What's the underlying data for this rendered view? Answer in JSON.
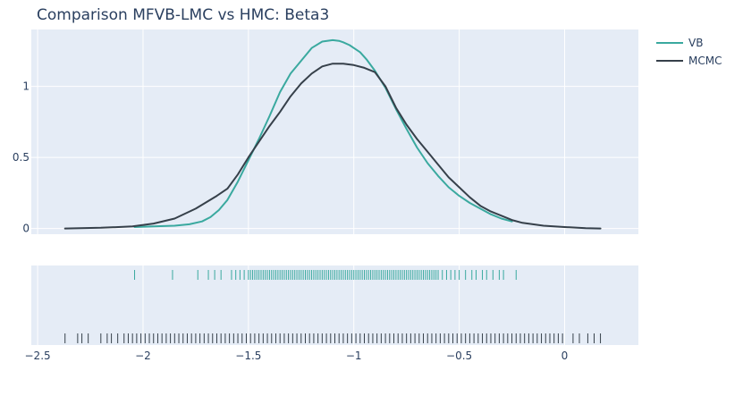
{
  "chart_data": {
    "type": "line",
    "title": "Comparison MFVB-LMC vs HMC: Beta3",
    "xlabel": "",
    "ylabel": "",
    "xlim": [
      -2.53,
      0.35
    ],
    "ylim": [
      -0.04,
      1.4
    ],
    "x_ticks": [
      -2.5,
      -2,
      -1.5,
      -1,
      -0.5,
      0
    ],
    "x_tick_labels": [
      "−2.5",
      "−2",
      "−1.5",
      "−1",
      "−0.5",
      "0"
    ],
    "y_ticks": [
      0,
      0.5,
      1
    ],
    "y_tick_labels": [
      "0",
      "0.5",
      "1"
    ],
    "legend_position": "top-right",
    "colors": {
      "VB": "#3aa99f",
      "MCMC": "#36404a",
      "plot_bg": "#e5ecf6",
      "grid": "#ffffff"
    },
    "series": [
      {
        "name": "VB",
        "x": [
          -2.04,
          -1.95,
          -1.85,
          -1.78,
          -1.72,
          -1.68,
          -1.64,
          -1.6,
          -1.55,
          -1.5,
          -1.45,
          -1.4,
          -1.35,
          -1.3,
          -1.25,
          -1.2,
          -1.15,
          -1.1,
          -1.07,
          -1.05,
          -1.02,
          -1.0,
          -0.97,
          -0.94,
          -0.9,
          -0.85,
          -0.8,
          -0.75,
          -0.7,
          -0.65,
          -0.6,
          -0.55,
          -0.5,
          -0.45,
          -0.4,
          -0.35,
          -0.3,
          -0.25
        ],
        "y": [
          0.01,
          0.015,
          0.02,
          0.03,
          0.05,
          0.08,
          0.13,
          0.2,
          0.33,
          0.48,
          0.63,
          0.79,
          0.96,
          1.09,
          1.18,
          1.27,
          1.315,
          1.325,
          1.32,
          1.31,
          1.29,
          1.27,
          1.24,
          1.19,
          1.11,
          0.99,
          0.84,
          0.7,
          0.57,
          0.46,
          0.37,
          0.29,
          0.23,
          0.18,
          0.14,
          0.1,
          0.07,
          0.05
        ]
      },
      {
        "name": "MCMC",
        "x": [
          -2.37,
          -2.2,
          -2.05,
          -1.95,
          -1.85,
          -1.75,
          -1.65,
          -1.6,
          -1.55,
          -1.5,
          -1.45,
          -1.4,
          -1.35,
          -1.3,
          -1.25,
          -1.2,
          -1.15,
          -1.1,
          -1.05,
          -1.0,
          -0.95,
          -0.9,
          -0.85,
          -0.8,
          -0.75,
          -0.7,
          -0.65,
          -0.6,
          -0.55,
          -0.5,
          -0.45,
          -0.4,
          -0.35,
          -0.3,
          -0.25,
          -0.2,
          -0.1,
          0.0,
          0.1,
          0.17
        ],
        "y": [
          0.0,
          0.005,
          0.015,
          0.035,
          0.07,
          0.14,
          0.23,
          0.28,
          0.38,
          0.5,
          0.61,
          0.72,
          0.82,
          0.93,
          1.02,
          1.09,
          1.14,
          1.16,
          1.16,
          1.15,
          1.13,
          1.1,
          1.0,
          0.85,
          0.73,
          0.63,
          0.54,
          0.45,
          0.36,
          0.29,
          0.22,
          0.16,
          0.12,
          0.09,
          0.06,
          0.04,
          0.02,
          0.01,
          0.003,
          0.0
        ]
      }
    ],
    "rug": [
      {
        "name": "VB",
        "x": [
          -2.04,
          -1.86,
          -1.74,
          -1.69,
          -1.66,
          -1.63,
          -1.58,
          -1.56,
          -1.54,
          -1.52,
          -1.5,
          -1.49,
          -1.48,
          -1.47,
          -1.46,
          -1.45,
          -1.44,
          -1.43,
          -1.42,
          -1.41,
          -1.4,
          -1.39,
          -1.38,
          -1.37,
          -1.36,
          -1.35,
          -1.34,
          -1.33,
          -1.32,
          -1.31,
          -1.3,
          -1.29,
          -1.28,
          -1.27,
          -1.26,
          -1.25,
          -1.24,
          -1.23,
          -1.22,
          -1.21,
          -1.2,
          -1.19,
          -1.18,
          -1.17,
          -1.16,
          -1.15,
          -1.14,
          -1.13,
          -1.12,
          -1.11,
          -1.1,
          -1.09,
          -1.08,
          -1.07,
          -1.06,
          -1.05,
          -1.04,
          -1.03,
          -1.02,
          -1.01,
          -1.0,
          -0.99,
          -0.98,
          -0.97,
          -0.96,
          -0.95,
          -0.94,
          -0.93,
          -0.92,
          -0.91,
          -0.9,
          -0.89,
          -0.88,
          -0.87,
          -0.86,
          -0.85,
          -0.84,
          -0.83,
          -0.82,
          -0.81,
          -0.8,
          -0.79,
          -0.78,
          -0.77,
          -0.76,
          -0.75,
          -0.74,
          -0.73,
          -0.72,
          -0.71,
          -0.7,
          -0.69,
          -0.68,
          -0.67,
          -0.66,
          -0.65,
          -0.64,
          -0.63,
          -0.62,
          -0.61,
          -0.6,
          -0.58,
          -0.56,
          -0.54,
          -0.52,
          -0.5,
          -0.47,
          -0.44,
          -0.42,
          -0.39,
          -0.37,
          -0.34,
          -0.31,
          -0.29,
          -0.23
        ]
      },
      {
        "name": "MCMC",
        "x": [
          -2.37,
          -2.31,
          -2.29,
          -2.26,
          -2.2,
          -2.17,
          -2.15,
          -2.12,
          -2.09,
          -2.07,
          -2.05,
          -2.03,
          -2.01,
          -1.99,
          -1.97,
          -1.95,
          -1.93,
          -1.91,
          -1.89,
          -1.87,
          -1.85,
          -1.83,
          -1.81,
          -1.79,
          -1.77,
          -1.75,
          -1.73,
          -1.71,
          -1.69,
          -1.67,
          -1.65,
          -1.63,
          -1.61,
          -1.59,
          -1.57,
          -1.55,
          -1.53,
          -1.51,
          -1.49,
          -1.47,
          -1.45,
          -1.43,
          -1.41,
          -1.39,
          -1.37,
          -1.35,
          -1.33,
          -1.31,
          -1.29,
          -1.27,
          -1.25,
          -1.23,
          -1.21,
          -1.19,
          -1.17,
          -1.15,
          -1.13,
          -1.11,
          -1.09,
          -1.07,
          -1.05,
          -1.03,
          -1.01,
          -0.99,
          -0.97,
          -0.95,
          -0.93,
          -0.91,
          -0.89,
          -0.87,
          -0.85,
          -0.83,
          -0.81,
          -0.79,
          -0.77,
          -0.75,
          -0.73,
          -0.71,
          -0.69,
          -0.67,
          -0.65,
          -0.63,
          -0.61,
          -0.59,
          -0.57,
          -0.55,
          -0.53,
          -0.51,
          -0.49,
          -0.47,
          -0.45,
          -0.43,
          -0.41,
          -0.39,
          -0.37,
          -0.35,
          -0.33,
          -0.31,
          -0.29,
          -0.27,
          -0.25,
          -0.23,
          -0.21,
          -0.19,
          -0.17,
          -0.15,
          -0.13,
          -0.11,
          -0.09,
          -0.07,
          -0.05,
          -0.03,
          -0.01,
          0.04,
          0.07,
          0.11,
          0.14,
          0.17
        ]
      }
    ]
  }
}
